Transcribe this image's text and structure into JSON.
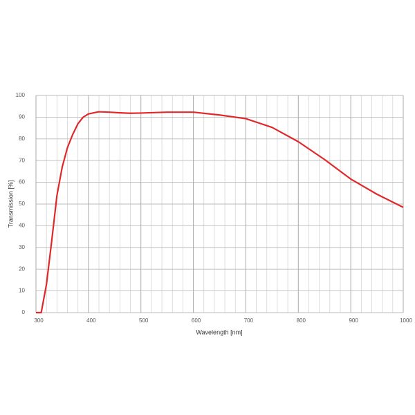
{
  "chart_data": {
    "type": "line",
    "x_label": "Wavelength [nm]",
    "y_label": "Transmission [%]",
    "x": [
      300,
      310,
      320,
      330,
      340,
      350,
      360,
      370,
      380,
      390,
      400,
      420,
      440,
      460,
      480,
      500,
      550,
      600,
      650,
      700,
      750,
      800,
      850,
      900,
      950,
      1000
    ],
    "series": [
      {
        "name": "Transmission",
        "color": "#e0282a",
        "values": [
          0,
          0,
          13,
          33,
          54,
          67,
          76,
          82,
          87,
          90,
          91.5,
          92.5,
          92.3,
          92,
          91.8,
          91.9,
          92.3,
          92.3,
          91,
          89.3,
          85.3,
          78.7,
          70.5,
          61.5,
          54.5,
          48.5
        ]
      }
    ],
    "xlim": [
      300,
      1000
    ],
    "ylim": [
      0,
      100
    ],
    "xticks": [
      300,
      400,
      500,
      600,
      700,
      800,
      900,
      1000
    ],
    "x_minor_gridlines": [
      320,
      340,
      360,
      380,
      420,
      440,
      460,
      480,
      520,
      540,
      560,
      580,
      620,
      640,
      660,
      680,
      720,
      740,
      760,
      780,
      820,
      840,
      860,
      880,
      920,
      940,
      960,
      980
    ],
    "yticks": [
      0,
      10,
      20,
      30,
      40,
      50,
      60,
      70,
      80,
      90,
      100
    ],
    "grid": true
  }
}
